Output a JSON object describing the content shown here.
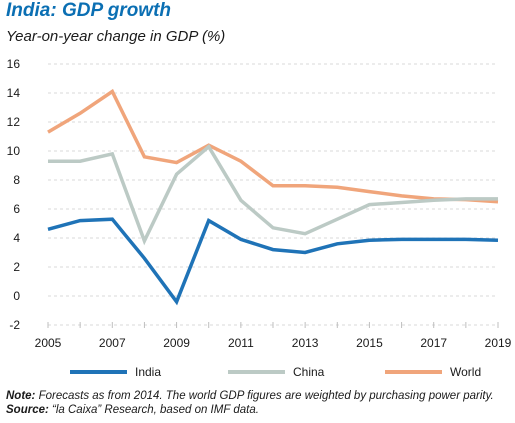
{
  "header": {
    "title": "India: GDP growth",
    "subtitle": "Year-on-year change in GDP (%)"
  },
  "footer": {
    "note_label": "Note:",
    "note_text": "Forecasts as from 2014. The world GDP figures are weighted by purchasing power parity.",
    "source_label": "Source:",
    "source_text": "“la Caixa” Research, based on IMF data."
  },
  "colors": {
    "India": "#1f73b7",
    "China": "#bccac5",
    "World": "#f0a57b",
    "grid": "#d9d9d9",
    "title": "#0b6fb3"
  },
  "chart_data": {
    "type": "line",
    "title": "India: GDP growth",
    "subtitle": "Year-on-year change in GDP (%)",
    "x": [
      2005,
      2006,
      2007,
      2008,
      2009,
      2010,
      2011,
      2012,
      2013,
      2014,
      2015,
      2016,
      2017,
      2018,
      2019
    ],
    "x_tick_labels": [
      "2005",
      "2007",
      "2009",
      "2011",
      "2013",
      "2015",
      "2017",
      "2019"
    ],
    "y_tick_labels": [
      "-2",
      "0",
      "2",
      "4",
      "6",
      "8",
      "10",
      "12",
      "14",
      "16"
    ],
    "ylim": [
      -2,
      16
    ],
    "xlim": [
      2005,
      2019
    ],
    "grid": "horizontal dashed",
    "legend_position": "bottom",
    "series": [
      {
        "name": "India",
        "values": [
          4.6,
          5.2,
          5.3,
          2.6,
          -0.4,
          5.2,
          3.9,
          3.2,
          3.0,
          3.6,
          3.85,
          3.9,
          3.9,
          3.9,
          3.85
        ]
      },
      {
        "name": "China",
        "values": [
          9.3,
          9.3,
          9.8,
          3.8,
          8.4,
          10.3,
          6.6,
          4.7,
          4.3,
          5.3,
          6.3,
          6.45,
          6.6,
          6.7,
          6.7
        ]
      },
      {
        "name": "World",
        "values": [
          11.3,
          12.6,
          14.1,
          9.6,
          9.2,
          10.4,
          9.3,
          7.6,
          7.6,
          7.5,
          7.2,
          6.9,
          6.7,
          6.65,
          6.5
        ]
      }
    ]
  }
}
